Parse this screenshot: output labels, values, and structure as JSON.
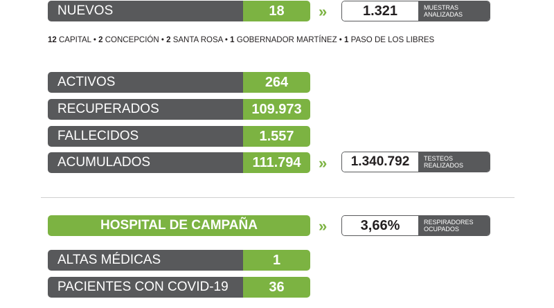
{
  "nuevos": {
    "label": "NUEVOS",
    "value": "18"
  },
  "muestras": {
    "value": "1.321",
    "desc_line1": "MUESTRAS",
    "desc_line2": "ANALIZADAS"
  },
  "breakdown": [
    {
      "num": "12",
      "place": "CAPITAL"
    },
    {
      "num": "2",
      "place": "CONCEPCIÓN"
    },
    {
      "num": "2",
      "place": "SANTA ROSA"
    },
    {
      "num": "1",
      "place": "GOBERNADOR MARTÍNEZ"
    },
    {
      "num": "1",
      "place": "PASO DE LOS LIBRES"
    }
  ],
  "stats": [
    {
      "label": "ACTIVOS",
      "value": "264"
    },
    {
      "label": "RECUPERADOS",
      "value": "109.973"
    },
    {
      "label": "FALLECIDOS",
      "value": "1.557"
    },
    {
      "label": "ACUMULADOS",
      "value": "111.794"
    }
  ],
  "testeos": {
    "value": "1.340.792",
    "desc_line1": "TESTEOS",
    "desc_line2": "REALIZADOS"
  },
  "hospital": {
    "title": "HOSPITAL DE CAMPAÑA"
  },
  "respiradores": {
    "value": "3,66%",
    "desc_line1": "RESPIRADORES",
    "desc_line2": "OCUPADOS"
  },
  "hospital_stats": [
    {
      "label": "ALTAS MÉDICAS",
      "value": "1"
    },
    {
      "label": "PACIENTES CON COVID-19",
      "value": "36"
    }
  ],
  "arrow_glyph": "»",
  "colors": {
    "green": "#7cb342",
    "gray": "#58595b"
  }
}
